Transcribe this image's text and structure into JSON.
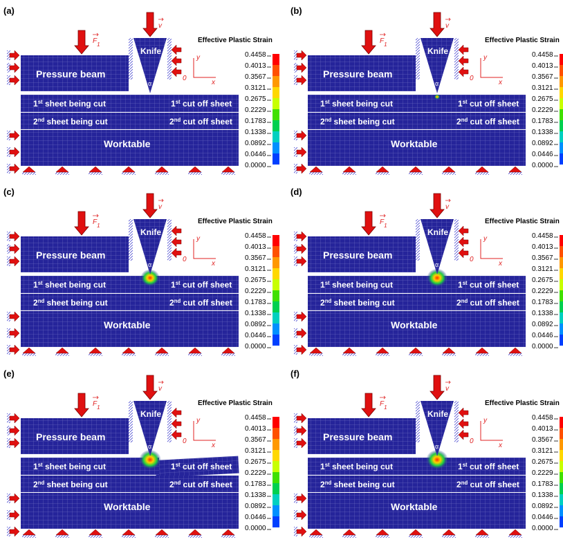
{
  "panels": [
    "(a)",
    "(b)",
    "(c)",
    "(d)",
    "(e)",
    "(f)"
  ],
  "legend_title": "Effective Plastic Strain",
  "legend_values": [
    "0.4458",
    "0.4013",
    "0.3567",
    "0.3121",
    "0.2675",
    "0.2229",
    "0.1783",
    "0.1338",
    "0.0892",
    "0.0446",
    "0.0000"
  ],
  "labels": {
    "pressure_beam": "Pressure beam",
    "knife": "Knife",
    "worktable": "Worktable",
    "sheet_cut_1": [
      "1",
      "st",
      " sheet being cut"
    ],
    "sheet_off_1": [
      "1",
      "st",
      " cut off sheet"
    ],
    "sheet_cut_2": [
      "2",
      "nd",
      " sheet being cut"
    ],
    "sheet_off_2": [
      "2",
      "nd",
      " cut off sheet"
    ],
    "force": [
      "F",
      "1"
    ],
    "velocity": "v",
    "axis_y": "y",
    "axis_x": "x",
    "origin": "0",
    "angle": "α"
  }
}
